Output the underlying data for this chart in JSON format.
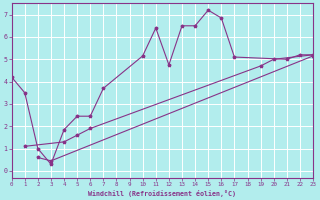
{
  "xlabel": "Windchill (Refroidissement éolien,°C)",
  "bg_color": "#b2eded",
  "grid_color": "#ffffff",
  "line_color": "#883388",
  "xlim": [
    0,
    23
  ],
  "ylim": [
    -0.3,
    7.5
  ],
  "xticks": [
    0,
    1,
    2,
    3,
    4,
    5,
    6,
    7,
    8,
    9,
    10,
    11,
    12,
    13,
    14,
    15,
    16,
    17,
    18,
    19,
    20,
    21,
    22,
    23
  ],
  "yticks": [
    0,
    1,
    2,
    3,
    4,
    5,
    6,
    7
  ],
  "line1_x": [
    0,
    1,
    2,
    3,
    4,
    5,
    6,
    7,
    10,
    11,
    12,
    13,
    14,
    15,
    16,
    17,
    21,
    22,
    23
  ],
  "line1_y": [
    4.2,
    3.5,
    1.0,
    0.3,
    1.85,
    2.45,
    2.45,
    3.7,
    5.15,
    6.4,
    4.75,
    6.5,
    6.5,
    7.2,
    6.85,
    5.1,
    5.0,
    5.2,
    5.2
  ],
  "line2_x": [
    1,
    4,
    5,
    6,
    19,
    20,
    23
  ],
  "line2_y": [
    1.1,
    1.3,
    1.6,
    1.9,
    4.7,
    5.0,
    5.2
  ],
  "line3_x": [
    2,
    3,
    23
  ],
  "line3_y": [
    0.6,
    0.45,
    5.15
  ]
}
